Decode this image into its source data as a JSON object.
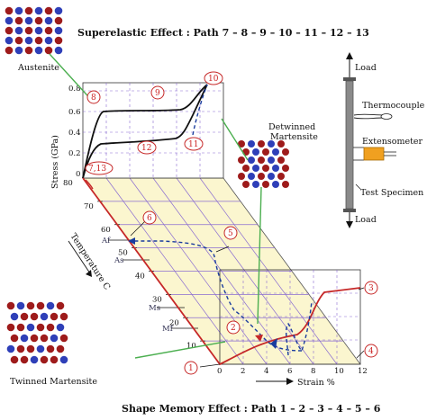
{
  "header": {
    "superelastic_title": "Superelastic Effect : Path 7 – 8 – 9 – 10 – 11 – 12 – 13"
  },
  "footer": {
    "shape_memory_title": "Shape Memory Effect : Path 1 – 2 – 3 – 4 – 5 – 6"
  },
  "labels": {
    "austenite": "Austenite",
    "detwinned_martensite_1": "Detwinned",
    "detwinned_martensite_2": "Martensite",
    "twinned_martensite": "Twinned Martensite",
    "load_top": "Load",
    "load_bottom": "Load",
    "thermocouple": "Thermocouple",
    "extensometer": "Extensometer",
    "test_specimen": "Test Specimen",
    "stress_axis": "Stress (GPa)",
    "temperature_axis": "Temperature C",
    "strain_axis": "Strain %"
  },
  "stress_ticks": [
    "0.8",
    "0.6",
    "0.4",
    "0.2",
    "0"
  ],
  "temperature_ticks": [
    "80",
    "70",
    "60",
    "50",
    "40",
    "30",
    "20",
    "10"
  ],
  "strain_ticks": [
    "0",
    "2",
    "4",
    "6",
    "8",
    "10",
    "12"
  ],
  "transformation_temps": {
    "af": "Af",
    "as": "As",
    "ms": "Ms",
    "mf": "Mf"
  },
  "path_markers": [
    "1",
    "2",
    "3",
    "4",
    "5",
    "6",
    "7,13",
    "8",
    "9",
    "10",
    "11",
    "12"
  ],
  "colors": {
    "austenite_atom": "#9e1b1b",
    "martensite_atom": "#2e3fb8",
    "path_red": "#c62828",
    "path_blue": "#1a3c9e",
    "guide_green": "#4caf50",
    "plane_fill": "#fbf6cf",
    "grid_purple": "#8a6cd1",
    "extensometer": "#f0a020",
    "specimen": "#8a8a8a"
  }
}
